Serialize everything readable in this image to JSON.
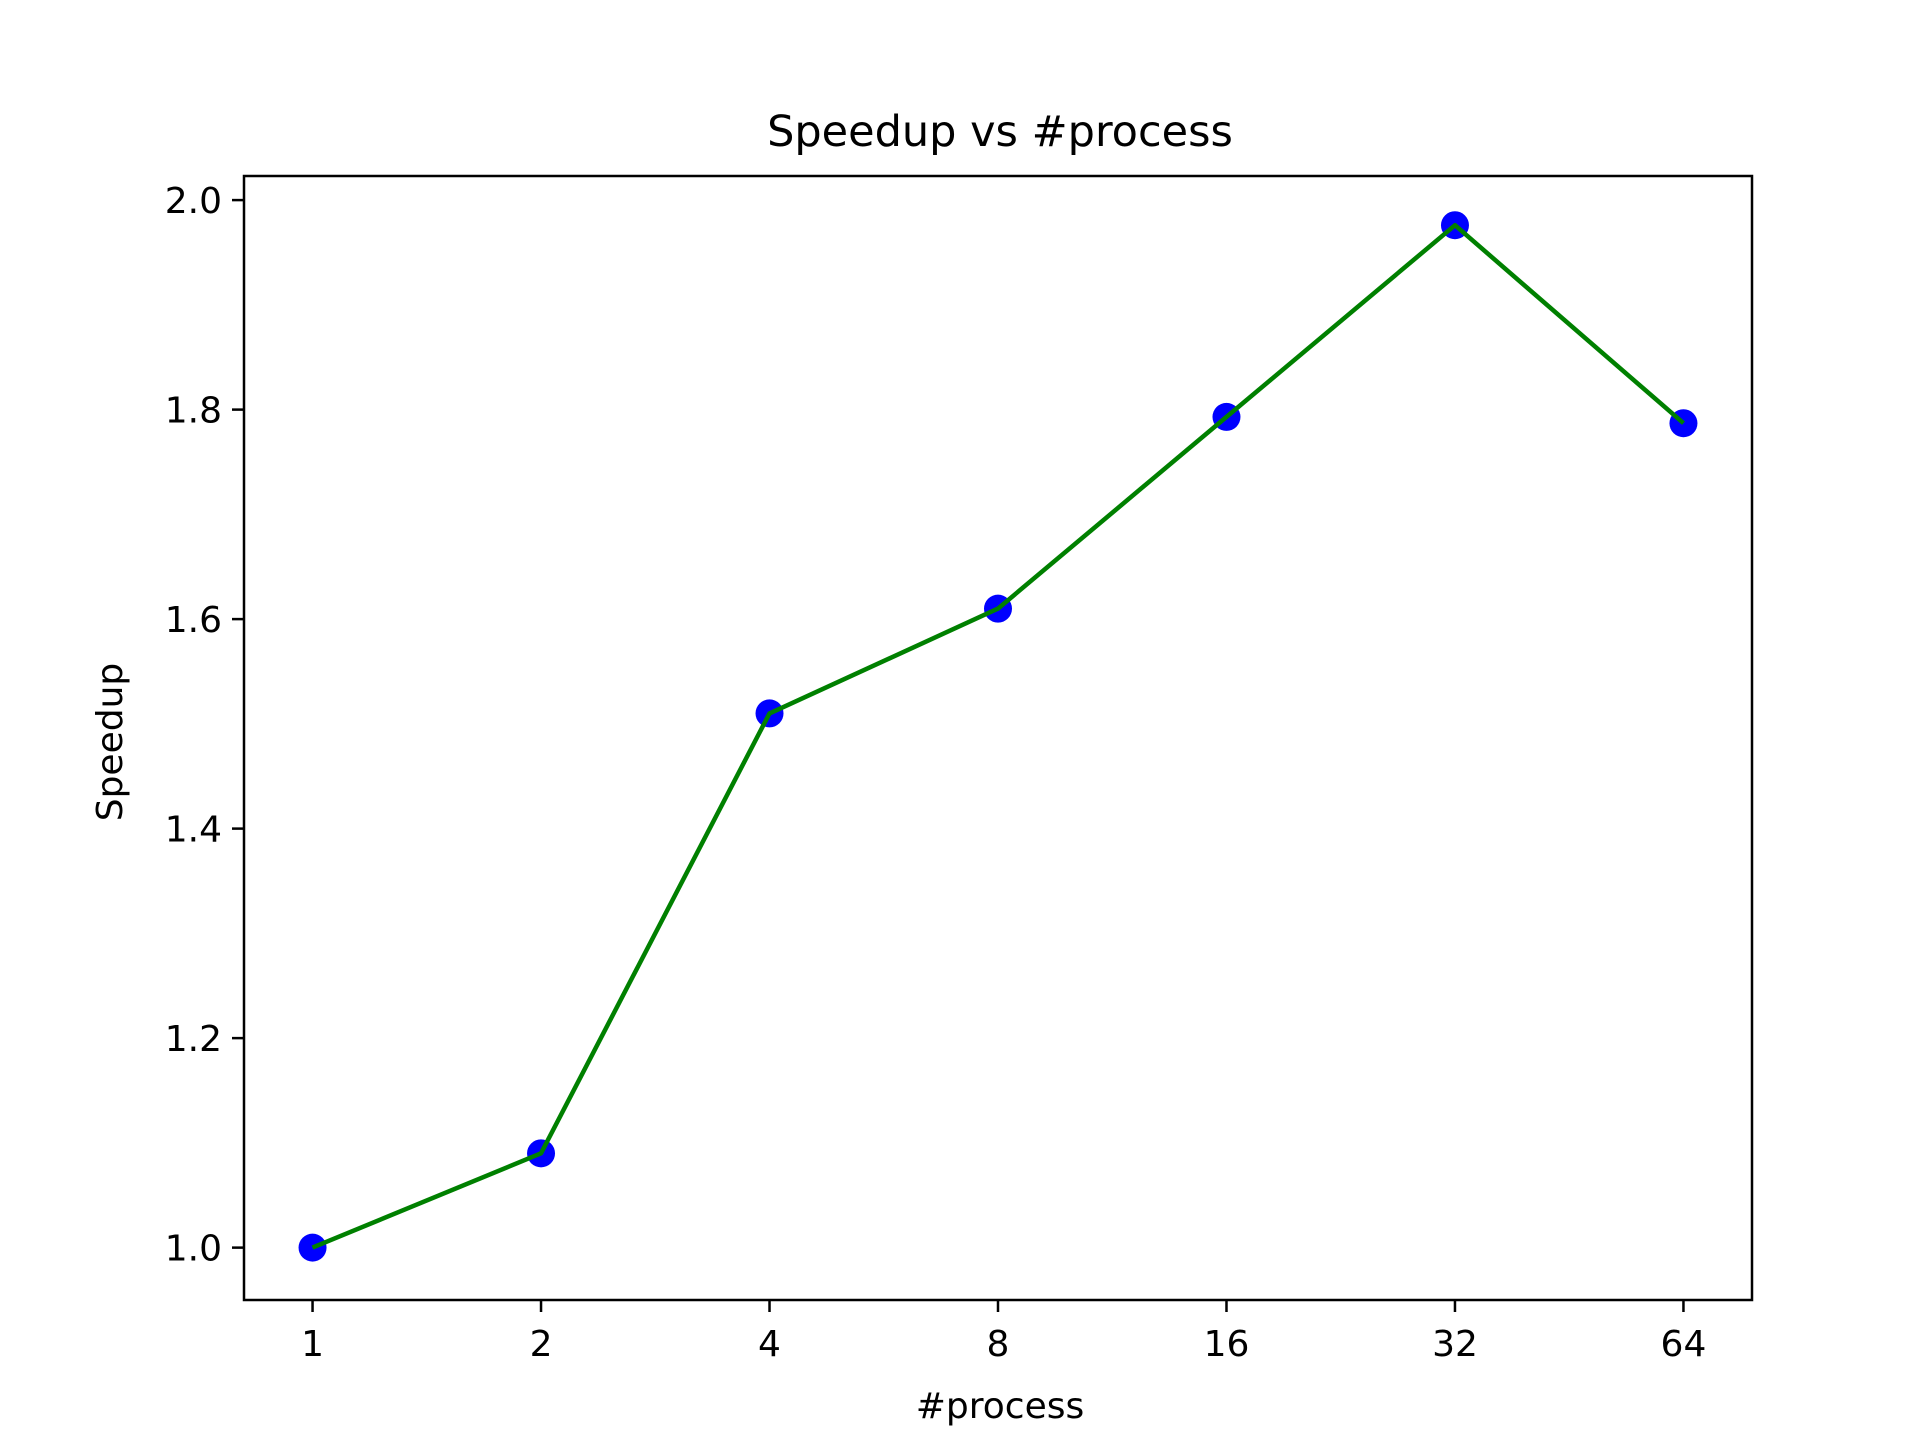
{
  "chart_data": {
    "type": "line",
    "title": "Speedup vs #process",
    "xlabel": "#process",
    "ylabel": "Speedup",
    "x_scale": "log2",
    "categories": [
      "1",
      "2",
      "4",
      "8",
      "16",
      "32",
      "64"
    ],
    "series": [
      {
        "values": [
          1.0,
          1.09,
          1.51,
          1.61,
          1.793,
          1.976,
          1.787
        ],
        "line_color": "#008000",
        "marker_color": "#0000ff",
        "marker": "circle"
      }
    ],
    "yticks": [
      1.0,
      1.2,
      1.4,
      1.6,
      1.8,
      2.0
    ],
    "ytick_labels": [
      "1.0",
      "1.2",
      "1.4",
      "1.6",
      "1.8",
      "2.0"
    ],
    "ylim": [
      0.95,
      2.023
    ],
    "grid": false,
    "legend": "none"
  }
}
